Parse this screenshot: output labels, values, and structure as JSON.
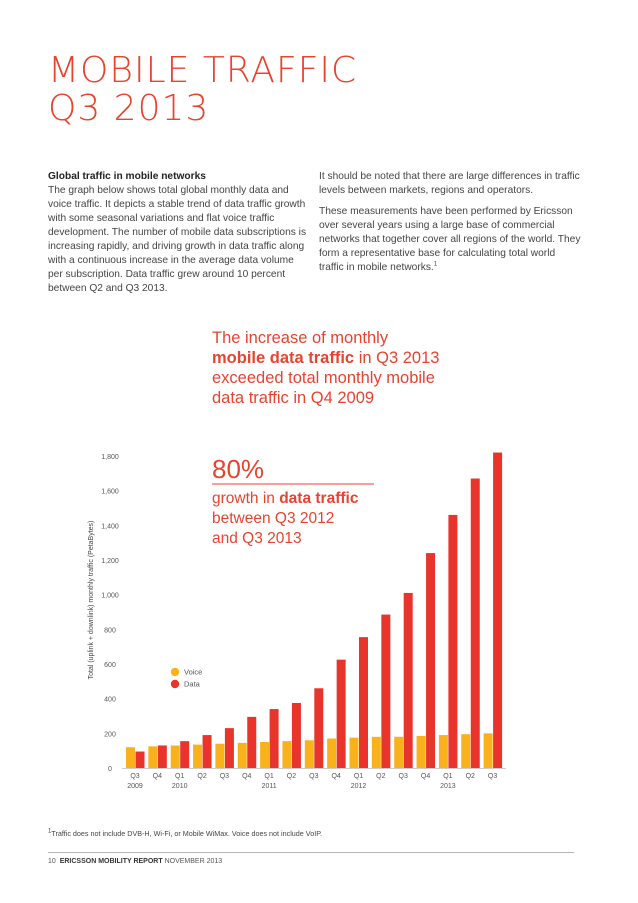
{
  "title": {
    "line1": "MOBILE TRAFFIC",
    "line2": "Q3 2013"
  },
  "left_column": {
    "heading": "Global traffic in mobile networks",
    "body": "The graph below shows total global monthly data and voice traffic. It depicts a stable trend of data traffic growth with some seasonal variations and flat voice traffic development. The number of mobile data subscriptions is increasing rapidly, and driving growth in data traffic along with a continuous increase in the average data volume per subscription. Data traffic grew around 10 percent between Q2 and Q3 2013."
  },
  "right_column": {
    "para1": "It should be noted that there are large differences in traffic levels between markets, regions and operators.",
    "para2": "These measurements have been performed by Ericsson over several years using a large base of commercial networks that together cover all regions of the world. They form a representative base for calculating total world traffic in mobile networks.",
    "para2_sup": "1"
  },
  "callout": {
    "line1": "The increase of monthly",
    "line2_bold": "mobile data traffic",
    "line2_rest": " in Q3 2013",
    "line3": "exceeded total monthly mobile",
    "line4": "data traffic in Q4 2009"
  },
  "stat": {
    "value": "80%",
    "line1_pre": "growth in ",
    "line1_bold": "data traffic",
    "line2": "between Q3 2012",
    "line3": "and Q3 2013"
  },
  "colors": {
    "accent": "#e8432f",
    "data": "#e8342a",
    "voice": "#f9b21b"
  },
  "chart_data": {
    "type": "bar",
    "ylabel": "Total (uplink + downlink) monthly traffic (PetaBytes)",
    "ylim": [
      0,
      1800
    ],
    "yticks": [
      0,
      200,
      400,
      600,
      800,
      1000,
      1200,
      1400,
      1600,
      1800
    ],
    "ytick_labels": [
      "0",
      "200",
      "400",
      "600",
      "800",
      "1,000",
      "1,200",
      "1,400",
      "1,600",
      "1,800"
    ],
    "categories": [
      "Q3",
      "Q4",
      "Q1",
      "Q2",
      "Q3",
      "Q4",
      "Q1",
      "Q2",
      "Q3",
      "Q4",
      "Q1",
      "Q2",
      "Q3",
      "Q4",
      "Q1",
      "Q2",
      "Q3"
    ],
    "year_labels": [
      {
        "index": 0,
        "label": "2009"
      },
      {
        "index": 2,
        "label": "2010"
      },
      {
        "index": 6,
        "label": "2011"
      },
      {
        "index": 10,
        "label": "2012"
      },
      {
        "index": 14,
        "label": "2013"
      }
    ],
    "series": [
      {
        "name": "Voice",
        "values": [
          120,
          125,
          130,
          135,
          140,
          145,
          150,
          155,
          160,
          170,
          175,
          180,
          180,
          185,
          190,
          195,
          200
        ]
      },
      {
        "name": "Data",
        "values": [
          95,
          130,
          155,
          190,
          230,
          295,
          340,
          375,
          460,
          625,
          755,
          885,
          1010,
          1240,
          1460,
          1670,
          1820
        ]
      }
    ],
    "legend": {
      "position": "inside-left",
      "items": [
        "Voice",
        "Data"
      ]
    }
  },
  "footnote": {
    "sup": "1",
    "text": "Traffic does not include DVB-H, Wi-Fi, or Mobile WiMax. Voice does not include VoIP."
  },
  "footer": {
    "page": "10",
    "brand": "ERICSSON MOBILITY REPORT",
    "date": "NOVEMBER 2013"
  }
}
